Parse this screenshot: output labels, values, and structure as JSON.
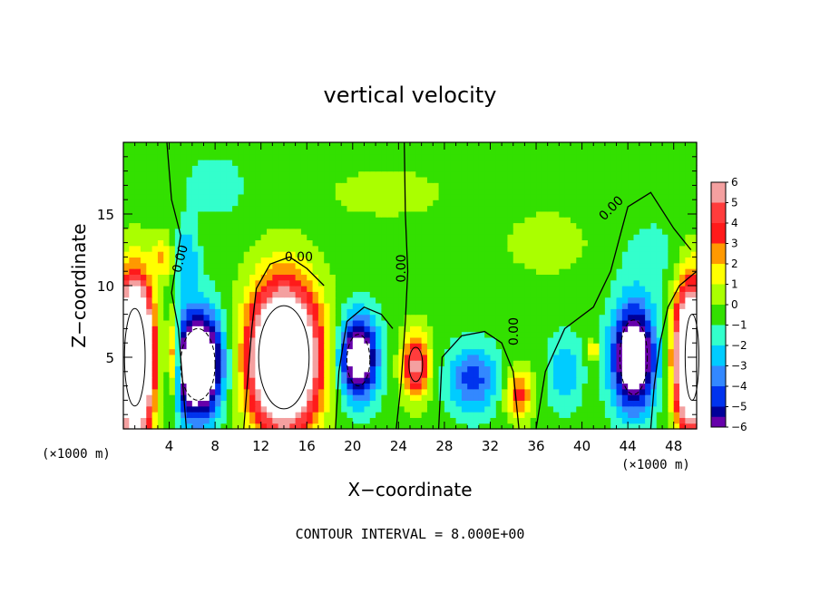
{
  "chart_data": {
    "type": "heatmap",
    "title": "vertical velocity",
    "xlabel": "X−coordinate",
    "ylabel": "Z−coordinate",
    "x_unit": "(×1000 m)",
    "y_unit": "(×1000 m)",
    "xlim": [
      0,
      50
    ],
    "ylim": [
      0,
      20
    ],
    "x_ticks": [
      4,
      8,
      12,
      16,
      20,
      24,
      28,
      32,
      36,
      40,
      44,
      48
    ],
    "y_ticks": [
      5,
      10,
      15
    ],
    "x_tick_labels": [
      "4",
      "8",
      "12",
      "16",
      "20",
      "24",
      "28",
      "32",
      "36",
      "40",
      "44",
      "48"
    ],
    "y_tick_labels": [
      "5",
      "10",
      "15"
    ],
    "colorbar": {
      "levels": [
        6,
        5,
        4,
        3,
        2,
        1,
        0,
        -1,
        -2,
        -3,
        -4,
        -5,
        -6
      ],
      "labels": [
        "6",
        "5",
        "4",
        "3",
        "2",
        "1",
        "0",
        "−1",
        "−2",
        "−3",
        "−4",
        "−5",
        "−6"
      ],
      "colors": [
        "#f4a0a0",
        "#ff3c3c",
        "#ff1a1a",
        "#ff9900",
        "#ffff00",
        "#aaff00",
        "#33e000",
        "#33ffcc",
        "#00ccff",
        "#3388ff",
        "#0033ee",
        "#000099",
        "#6600aa"
      ]
    },
    "contour_labels": [
      "0.00",
      "0.00",
      "0.00",
      "0.00",
      "0.00"
    ],
    "contour_interval": "CONTOUR INTERVAL = 8.000E+00",
    "cells": [
      {
        "x": 1,
        "z": 5,
        "rx": 1.5,
        "rz": 5,
        "amp": 18
      },
      {
        "x": 4.4,
        "z": 5,
        "rx": 0.6,
        "rz": 3,
        "amp": 6
      },
      {
        "x": 6.5,
        "z": 4.5,
        "rx": 2,
        "rz": 3.5,
        "amp": -12
      },
      {
        "x": 14,
        "z": 5,
        "rx": 3,
        "rz": 5,
        "amp": 14
      },
      {
        "x": 20.5,
        "z": 5,
        "rx": 1.6,
        "rz": 2.8,
        "amp": -9
      },
      {
        "x": 25.5,
        "z": 4.5,
        "rx": 1.2,
        "rz": 2.3,
        "amp": 6
      },
      {
        "x": 30.5,
        "z": 3.5,
        "rx": 2.2,
        "rz": 2.3,
        "amp": -4
      },
      {
        "x": 34.5,
        "z": 2.5,
        "rx": 1.2,
        "rz": 1.8,
        "amp": 4
      },
      {
        "x": 38.5,
        "z": 4,
        "rx": 1.4,
        "rz": 2.5,
        "amp": -2.5
      },
      {
        "x": 44.5,
        "z": 5,
        "rx": 1.8,
        "rz": 3.5,
        "amp": -10
      },
      {
        "x": 49.5,
        "z": 5,
        "rx": 1.4,
        "rz": 5,
        "amp": 14
      },
      {
        "x": 5.5,
        "z": 12,
        "rx": 1,
        "rz": 2.2,
        "amp": -2.5
      },
      {
        "x": 3.5,
        "z": 12,
        "rx": 1,
        "rz": 1.5,
        "amp": 2.5
      },
      {
        "x": 8,
        "z": 17,
        "rx": 2.5,
        "rz": 2,
        "amp": -1.3
      },
      {
        "x": 23,
        "z": 16.5,
        "rx": 6,
        "rz": 2,
        "amp": 0.9
      },
      {
        "x": 37,
        "z": 13,
        "rx": 5,
        "rz": 3,
        "amp": 0.8
      },
      {
        "x": 46,
        "z": 12,
        "rx": 3,
        "rz": 3,
        "amp": -0.9
      },
      {
        "x": 41,
        "z": 5.5,
        "rx": 0.5,
        "rz": 0.7,
        "amp": 3
      }
    ]
  }
}
